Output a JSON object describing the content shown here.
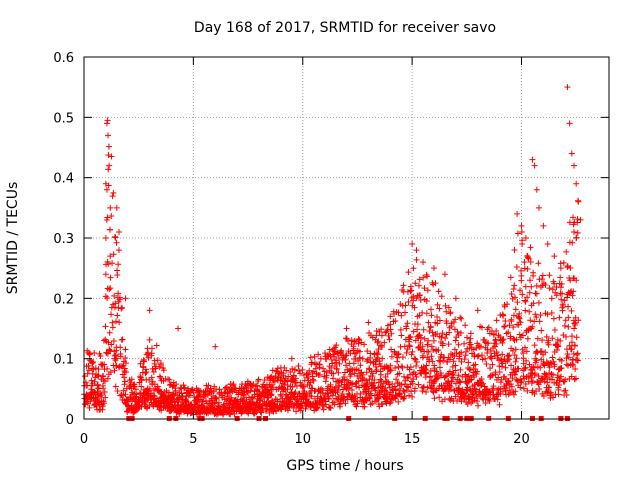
{
  "chart_data": {
    "type": "scatter",
    "title": "Day 168 of 2017, SRMTID for receiver savo",
    "xlabel": "GPS time / hours",
    "ylabel": "SRMTID / TECUs",
    "xlim": [
      0,
      24
    ],
    "ylim": [
      0,
      0.6
    ],
    "grid": true,
    "marker": "+",
    "color": "#ff0000",
    "x_ticks": [
      {
        "value": 0,
        "label": "0"
      },
      {
        "value": 5,
        "label": "5"
      },
      {
        "value": 10,
        "label": "10"
      },
      {
        "value": 15,
        "label": "15"
      },
      {
        "value": 20,
        "label": "20"
      }
    ],
    "y_ticks": [
      {
        "value": 0,
        "label": "0"
      },
      {
        "value": 0.1,
        "label": "0.1"
      },
      {
        "value": 0.2,
        "label": "0.2"
      },
      {
        "value": 0.3,
        "label": "0.3"
      },
      {
        "value": 0.4,
        "label": "0.4"
      },
      {
        "value": 0.5,
        "label": "0.5"
      },
      {
        "value": 0.6,
        "label": "0.6"
      }
    ],
    "trend": [
      [
        0.0,
        0.07
      ],
      [
        0.3,
        0.06
      ],
      [
        0.6,
        0.05
      ],
      [
        0.9,
        0.06
      ],
      [
        1.1,
        0.25
      ],
      [
        1.3,
        0.22
      ],
      [
        1.5,
        0.16
      ],
      [
        1.8,
        0.08
      ],
      [
        2.0,
        0.04
      ],
      [
        2.3,
        0.03
      ],
      [
        2.6,
        0.05
      ],
      [
        3.0,
        0.07
      ],
      [
        3.4,
        0.06
      ],
      [
        3.8,
        0.04
      ],
      [
        4.3,
        0.03
      ],
      [
        5.0,
        0.028
      ],
      [
        6.0,
        0.028
      ],
      [
        7.0,
        0.03
      ],
      [
        8.0,
        0.035
      ],
      [
        9.0,
        0.045
      ],
      [
        10.0,
        0.05
      ],
      [
        11.0,
        0.06
      ],
      [
        12.0,
        0.07
      ],
      [
        13.0,
        0.075
      ],
      [
        14.0,
        0.085
      ],
      [
        14.8,
        0.12
      ],
      [
        15.2,
        0.15
      ],
      [
        16.0,
        0.13
      ],
      [
        17.0,
        0.09
      ],
      [
        18.0,
        0.08
      ],
      [
        19.0,
        0.09
      ],
      [
        19.5,
        0.12
      ],
      [
        20.0,
        0.18
      ],
      [
        20.5,
        0.14
      ],
      [
        21.0,
        0.13
      ],
      [
        21.5,
        0.12
      ],
      [
        22.0,
        0.14
      ],
      [
        22.5,
        0.2
      ],
      [
        22.6,
        0.2
      ]
    ],
    "spikes": [
      [
        1.05,
        0.49
      ],
      [
        1.08,
        0.495
      ],
      [
        1.1,
        0.47
      ],
      [
        1.15,
        0.42
      ],
      [
        1.0,
        0.39
      ],
      [
        1.05,
        0.38
      ],
      [
        1.2,
        0.35
      ],
      [
        1.5,
        0.35
      ],
      [
        1.6,
        0.31
      ],
      [
        1.6,
        0.28
      ],
      [
        1.0,
        0.3
      ],
      [
        1.2,
        0.27
      ],
      [
        1.0,
        0.24
      ],
      [
        1.9,
        0.2
      ],
      [
        3.0,
        0.18
      ],
      [
        4.3,
        0.15
      ],
      [
        6.0,
        0.12
      ],
      [
        9.5,
        0.1
      ],
      [
        12.0,
        0.15
      ],
      [
        13.0,
        0.16
      ],
      [
        14.0,
        0.17
      ],
      [
        15.0,
        0.29
      ],
      [
        15.2,
        0.28
      ],
      [
        15.5,
        0.26
      ],
      [
        16.0,
        0.25
      ],
      [
        16.5,
        0.24
      ],
      [
        17.0,
        0.2
      ],
      [
        18.0,
        0.18
      ],
      [
        19.8,
        0.34
      ],
      [
        20.0,
        0.32
      ],
      [
        20.2,
        0.3
      ],
      [
        20.5,
        0.43
      ],
      [
        20.6,
        0.42
      ],
      [
        20.7,
        0.38
      ],
      [
        20.8,
        0.35
      ],
      [
        21.0,
        0.32
      ],
      [
        21.2,
        0.29
      ],
      [
        21.5,
        0.27
      ],
      [
        21.8,
        0.25
      ],
      [
        22.1,
        0.55
      ],
      [
        22.2,
        0.49
      ],
      [
        22.3,
        0.44
      ],
      [
        22.4,
        0.42
      ],
      [
        22.5,
        0.39
      ],
      [
        22.6,
        0.36
      ],
      [
        22.7,
        0.33
      ],
      [
        22.4,
        0.31
      ],
      [
        22.5,
        0.3
      ]
    ],
    "zero_markers": [
      2.05,
      2.1,
      2.15,
      2.2,
      3.9,
      4.2,
      5.3,
      5.4,
      7.0,
      8.0,
      8.3,
      12.1,
      14.2,
      15.6,
      16.5,
      16.6,
      17.2,
      17.5,
      17.6,
      17.7,
      18.5,
      19.4,
      20.5,
      20.9,
      21.8,
      22.1
    ]
  }
}
